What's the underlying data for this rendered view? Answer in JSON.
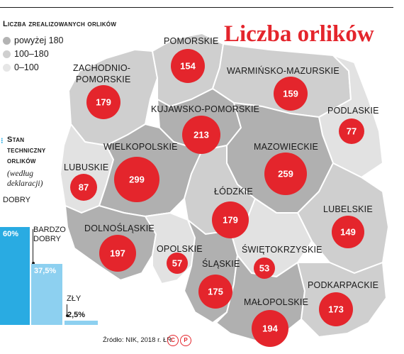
{
  "title": "Liczba orlików",
  "legend": {
    "title": "Liczba zrealizowanych orlików",
    "items": [
      {
        "label": "powyżej 180",
        "color": "#b3b3b3"
      },
      {
        "label": "100–180",
        "color": "#cfcfcf"
      },
      {
        "label": "0–100",
        "color": "#e6e6e6"
      }
    ]
  },
  "regions": [
    {
      "name": "POMORSKIE",
      "value": "154"
    },
    {
      "name": "ZACHODNIO-",
      "name2": "POMORSKIE",
      "value": "179"
    },
    {
      "name": "WARMIŃSKO-MAZURSKIE",
      "value": "159"
    },
    {
      "name": "KUJAWSKO-POMORSKIE",
      "value": "213"
    },
    {
      "name": "PODLASKIE",
      "value": "77"
    },
    {
      "name": "WIELKOPOLSKIE",
      "value": "299"
    },
    {
      "name": "MAZOWIECKIE",
      "value": "259"
    },
    {
      "name": "LUBUSKIE",
      "value": "87"
    },
    {
      "name": "ŁÓDZKIE",
      "value": "179"
    },
    {
      "name": "LUBELSKIE",
      "value": "149"
    },
    {
      "name": "DOLNOŚLĄSKIE",
      "value": "197"
    },
    {
      "name": "OPOLSKIE",
      "value": "57"
    },
    {
      "name": "ŚWIĘTOKRZYSKIE",
      "value": "53"
    },
    {
      "name": "ŚLĄSKIE",
      "value": "175"
    },
    {
      "name": "PODKARPACKIE",
      "value": "173"
    },
    {
      "name": "MAŁOPOLSKIE",
      "value": "194"
    }
  ],
  "condition": {
    "title_line1": "Stan",
    "title_line2": "techniczny",
    "title_line3": "orlików",
    "subtitle_line1": "(według",
    "subtitle_line2": "deklaracji)",
    "bars": [
      {
        "label": "DOBRY",
        "label2": "",
        "value": 60,
        "display": "60%",
        "color": "#29abe2"
      },
      {
        "label": "BARDZO",
        "label2": "DOBRY",
        "value": 37.5,
        "display": "37,5%",
        "color": "#8dd0f0"
      },
      {
        "label": "ZŁY",
        "label2": "",
        "value": 2.5,
        "display": "2,5%",
        "color": "#8dd0f0"
      }
    ]
  },
  "source": "Źródło: NIK, 2018 r.",
  "author": "ŁR",
  "colors": {
    "accent": "#e4252c",
    "dark": "#a6a6a6",
    "mid": "#c8c8c8",
    "light": "#e2e2e2",
    "border": "#ffffff"
  }
}
